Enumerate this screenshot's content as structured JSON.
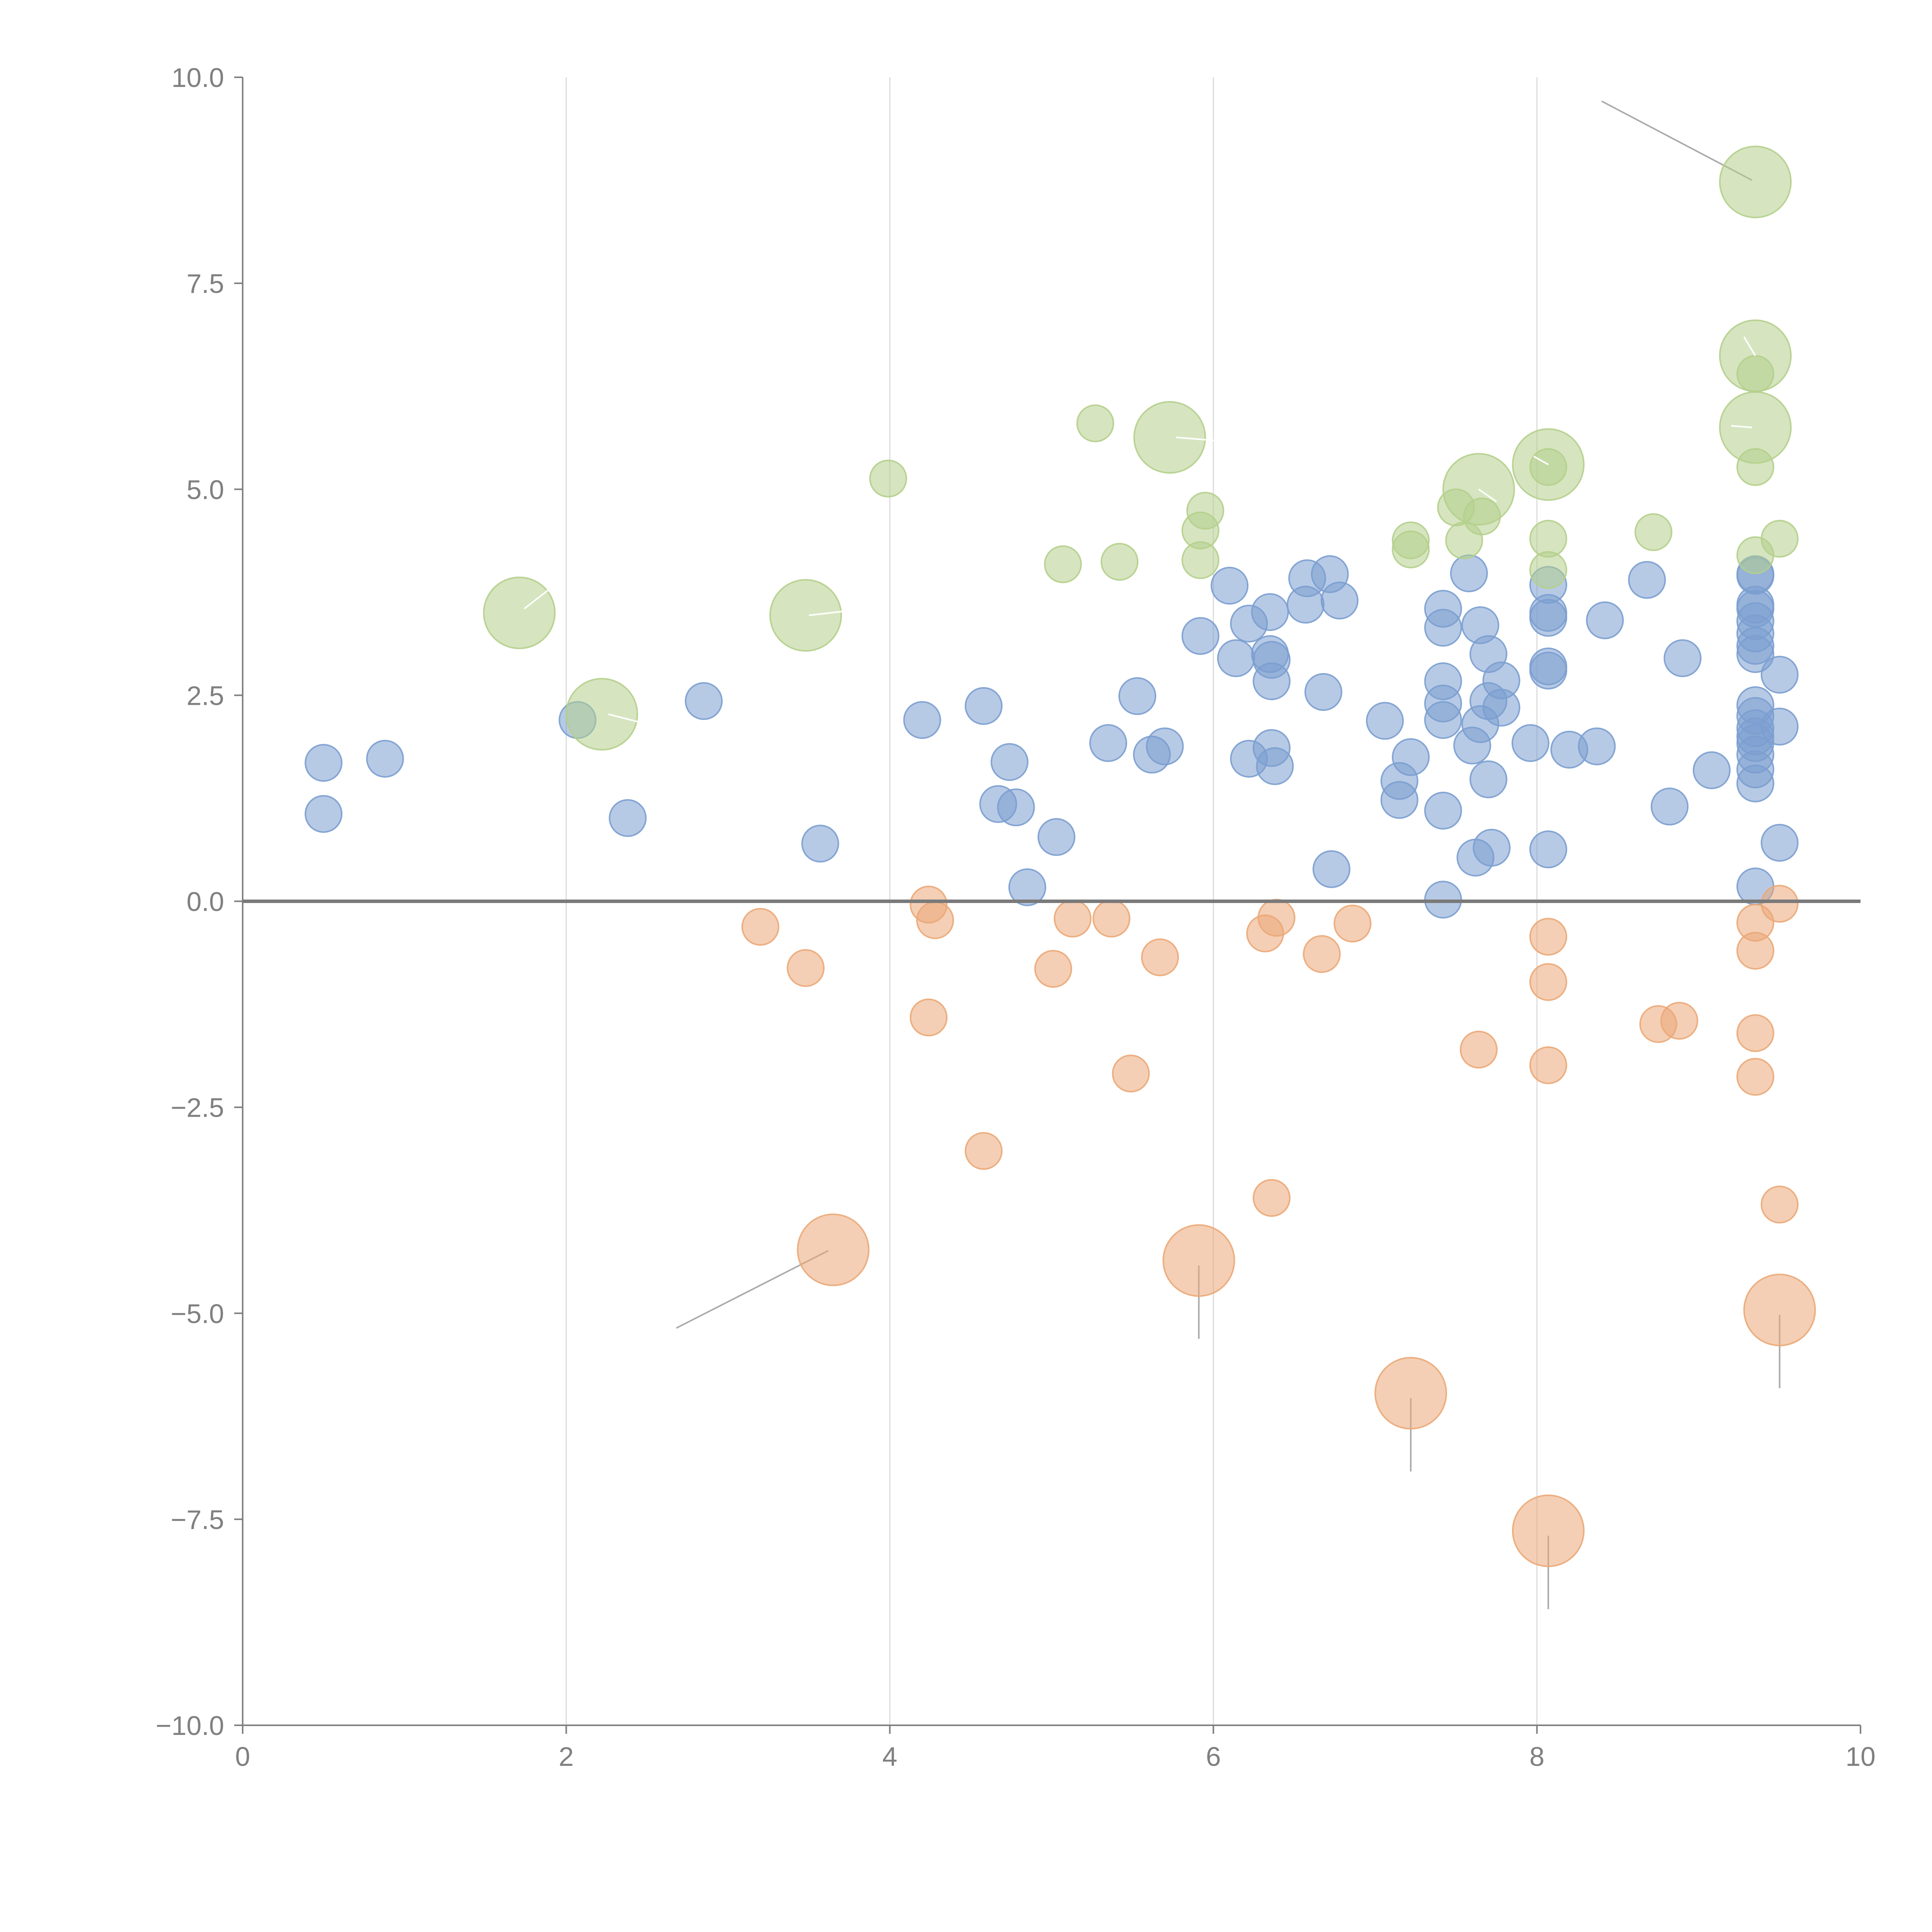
{
  "chart_data": {
    "type": "scatter",
    "subtype": "bubble",
    "title": "",
    "xlabel": "",
    "ylabel": "",
    "xlim": [
      0,
      10
    ],
    "ylim": [
      -10,
      10
    ],
    "x_ticks": [
      0,
      2,
      4,
      6,
      8,
      10
    ],
    "x_tick_labels": [
      "0",
      "2",
      "4",
      "6",
      "8",
      "10"
    ],
    "y_ticks": [
      10,
      7.5,
      5,
      2.5,
      0,
      -2.5,
      -5,
      -7.5,
      -10
    ],
    "y_tick_labels": [
      "10.0",
      "7.5",
      "5.0",
      "2.5",
      "0.0",
      "−2.5",
      "−5.0",
      "−7.5",
      "−10.0"
    ],
    "vertical_grid_at": [
      2,
      4,
      6,
      8
    ],
    "zero_line": 0,
    "series": [
      {
        "name": "blue",
        "color": "#7b9fd0",
        "points": [
          {
            "x": 0.5,
            "y": 1.68,
            "s": 1
          },
          {
            "x": 0.5,
            "y": 1.06,
            "s": 1
          },
          {
            "x": 0.88,
            "y": 1.73,
            "s": 1
          },
          {
            "x": 2.07,
            "y": 2.2,
            "s": 1
          },
          {
            "x": 2.38,
            "y": 1.01,
            "s": 1
          },
          {
            "x": 2.85,
            "y": 2.43,
            "s": 1
          },
          {
            "x": 3.57,
            "y": 0.7,
            "s": 1
          },
          {
            "x": 4.2,
            "y": 2.2,
            "s": 1
          },
          {
            "x": 4.58,
            "y": 2.37,
            "s": 1
          },
          {
            "x": 4.67,
            "y": 1.18,
            "s": 1
          },
          {
            "x": 4.74,
            "y": 1.69,
            "s": 1
          },
          {
            "x": 4.78,
            "y": 1.14,
            "s": 1
          },
          {
            "x": 4.85,
            "y": 0.17,
            "s": 1
          },
          {
            "x": 5.03,
            "y": 0.78,
            "s": 1
          },
          {
            "x": 5.35,
            "y": 1.92,
            "s": 1
          },
          {
            "x": 5.53,
            "y": 2.49,
            "s": 1
          },
          {
            "x": 5.62,
            "y": 1.78,
            "s": 1
          },
          {
            "x": 5.7,
            "y": 1.88,
            "s": 1
          },
          {
            "x": 5.92,
            "y": 3.22,
            "s": 1
          },
          {
            "x": 6.1,
            "y": 3.83,
            "s": 1
          },
          {
            "x": 6.14,
            "y": 2.95,
            "s": 1
          },
          {
            "x": 6.22,
            "y": 3.37,
            "s": 1
          },
          {
            "x": 6.22,
            "y": 1.73,
            "s": 1
          },
          {
            "x": 6.35,
            "y": 3.51,
            "s": 1
          },
          {
            "x": 6.35,
            "y": 3.0,
            "s": 1
          },
          {
            "x": 6.36,
            "y": 2.93,
            "s": 1
          },
          {
            "x": 6.36,
            "y": 2.67,
            "s": 1
          },
          {
            "x": 6.36,
            "y": 1.86,
            "s": 1
          },
          {
            "x": 6.38,
            "y": 1.64,
            "s": 1
          },
          {
            "x": 6.57,
            "y": 3.6,
            "s": 1
          },
          {
            "x": 6.58,
            "y": 3.92,
            "s": 1
          },
          {
            "x": 6.68,
            "y": 2.54,
            "s": 1
          },
          {
            "x": 6.72,
            "y": 3.97,
            "s": 1
          },
          {
            "x": 6.73,
            "y": 0.39,
            "s": 1
          },
          {
            "x": 6.78,
            "y": 3.65,
            "s": 1
          },
          {
            "x": 7.06,
            "y": 2.19,
            "s": 1
          },
          {
            "x": 7.15,
            "y": 1.46,
            "s": 1
          },
          {
            "x": 7.15,
            "y": 1.23,
            "s": 1
          },
          {
            "x": 7.22,
            "y": 1.75,
            "s": 1
          },
          {
            "x": 7.42,
            "y": 3.55,
            "s": 1
          },
          {
            "x": 7.42,
            "y": 3.32,
            "s": 1
          },
          {
            "x": 7.42,
            "y": 2.67,
            "s": 1
          },
          {
            "x": 7.42,
            "y": 2.4,
            "s": 1
          },
          {
            "x": 7.42,
            "y": 2.2,
            "s": 1
          },
          {
            "x": 7.42,
            "y": 1.1,
            "s": 1
          },
          {
            "x": 7.42,
            "y": 0.02,
            "s": 1
          },
          {
            "x": 7.58,
            "y": 3.98,
            "s": 1
          },
          {
            "x": 7.6,
            "y": 1.89,
            "s": 1
          },
          {
            "x": 7.62,
            "y": 0.53,
            "s": 1
          },
          {
            "x": 7.65,
            "y": 3.35,
            "s": 1
          },
          {
            "x": 7.65,
            "y": 2.15,
            "s": 1
          },
          {
            "x": 7.7,
            "y": 3.0,
            "s": 1
          },
          {
            "x": 7.7,
            "y": 2.43,
            "s": 1
          },
          {
            "x": 7.7,
            "y": 1.48,
            "s": 1
          },
          {
            "x": 7.72,
            "y": 0.65,
            "s": 1
          },
          {
            "x": 7.78,
            "y": 2.68,
            "s": 1
          },
          {
            "x": 7.78,
            "y": 2.35,
            "s": 1
          },
          {
            "x": 7.96,
            "y": 1.92,
            "s": 1
          },
          {
            "x": 8.07,
            "y": 3.84,
            "s": 1
          },
          {
            "x": 8.07,
            "y": 3.5,
            "s": 1
          },
          {
            "x": 8.07,
            "y": 3.44,
            "s": 1
          },
          {
            "x": 8.07,
            "y": 2.85,
            "s": 1
          },
          {
            "x": 8.07,
            "y": 2.8,
            "s": 1
          },
          {
            "x": 8.07,
            "y": 0.63,
            "s": 1
          },
          {
            "x": 8.2,
            "y": 1.84,
            "s": 1
          },
          {
            "x": 8.37,
            "y": 1.88,
            "s": 1
          },
          {
            "x": 8.42,
            "y": 3.41,
            "s": 1
          },
          {
            "x": 8.68,
            "y": 3.9,
            "s": 1
          },
          {
            "x": 8.82,
            "y": 1.15,
            "s": 1
          },
          {
            "x": 8.9,
            "y": 2.95,
            "s": 1
          },
          {
            "x": 9.08,
            "y": 1.59,
            "s": 1
          },
          {
            "x": 9.35,
            "y": 3.97,
            "s": 1
          },
          {
            "x": 9.35,
            "y": 3.95,
            "s": 1
          },
          {
            "x": 9.35,
            "y": 3.6,
            "s": 1
          },
          {
            "x": 9.35,
            "y": 3.55,
            "s": 1
          },
          {
            "x": 9.35,
            "y": 3.4,
            "s": 1
          },
          {
            "x": 9.35,
            "y": 3.25,
            "s": 1
          },
          {
            "x": 9.35,
            "y": 3.1,
            "s": 1
          },
          {
            "x": 9.35,
            "y": 3.0,
            "s": 1
          },
          {
            "x": 9.35,
            "y": 2.38,
            "s": 1
          },
          {
            "x": 9.35,
            "y": 2.25,
            "s": 1
          },
          {
            "x": 9.35,
            "y": 2.1,
            "s": 1
          },
          {
            "x": 9.35,
            "y": 2.0,
            "s": 1
          },
          {
            "x": 9.35,
            "y": 1.92,
            "s": 1
          },
          {
            "x": 9.35,
            "y": 1.78,
            "s": 1
          },
          {
            "x": 9.35,
            "y": 1.6,
            "s": 1
          },
          {
            "x": 9.35,
            "y": 1.43,
            "s": 1
          },
          {
            "x": 9.35,
            "y": 0.18,
            "s": 1
          },
          {
            "x": 9.5,
            "y": 2.75,
            "s": 1
          },
          {
            "x": 9.5,
            "y": 2.12,
            "s": 1
          },
          {
            "x": 9.5,
            "y": 0.71,
            "s": 1
          }
        ]
      },
      {
        "name": "green",
        "color": "#b5cf8c",
        "points": [
          {
            "x": 1.71,
            "y": 3.5,
            "s": 2
          },
          {
            "x": 2.22,
            "y": 2.27,
            "s": 2
          },
          {
            "x": 3.48,
            "y": 3.47,
            "s": 2
          },
          {
            "x": 3.99,
            "y": 5.13,
            "s": 1
          },
          {
            "x": 5.07,
            "y": 4.09,
            "s": 1
          },
          {
            "x": 5.27,
            "y": 5.8,
            "s": 1
          },
          {
            "x": 5.42,
            "y": 4.12,
            "s": 1
          },
          {
            "x": 5.73,
            "y": 5.63,
            "s": 2
          },
          {
            "x": 5.92,
            "y": 4.5,
            "s": 1
          },
          {
            "x": 5.92,
            "y": 4.14,
            "s": 1
          },
          {
            "x": 5.95,
            "y": 4.74,
            "s": 1
          },
          {
            "x": 7.22,
            "y": 4.38,
            "s": 1
          },
          {
            "x": 7.22,
            "y": 4.27,
            "s": 1
          },
          {
            "x": 7.5,
            "y": 4.78,
            "s": 1
          },
          {
            "x": 7.55,
            "y": 4.38,
            "s": 1
          },
          {
            "x": 7.64,
            "y": 5.0,
            "s": 2
          },
          {
            "x": 7.66,
            "y": 4.67,
            "s": 1
          },
          {
            "x": 8.07,
            "y": 5.3,
            "s": 2
          },
          {
            "x": 8.07,
            "y": 5.27,
            "s": 1
          },
          {
            "x": 8.07,
            "y": 4.4,
            "s": 1
          },
          {
            "x": 8.07,
            "y": 4.02,
            "s": 1
          },
          {
            "x": 8.72,
            "y": 4.48,
            "s": 1
          },
          {
            "x": 9.35,
            "y": 8.73,
            "s": 2
          },
          {
            "x": 9.35,
            "y": 6.62,
            "s": 2
          },
          {
            "x": 9.35,
            "y": 6.4,
            "s": 1
          },
          {
            "x": 9.35,
            "y": 5.75,
            "s": 2
          },
          {
            "x": 9.35,
            "y": 5.27,
            "s": 1
          },
          {
            "x": 9.35,
            "y": 4.2,
            "s": 1
          },
          {
            "x": 9.5,
            "y": 4.4,
            "s": 1
          }
        ]
      },
      {
        "name": "orange",
        "color": "#eba878",
        "points": [
          {
            "x": 3.2,
            "y": -0.31,
            "s": 1
          },
          {
            "x": 3.48,
            "y": -0.81,
            "s": 1
          },
          {
            "x": 3.65,
            "y": -4.23,
            "s": 2
          },
          {
            "x": 4.24,
            "y": -0.04,
            "s": 1
          },
          {
            "x": 4.24,
            "y": -1.41,
            "s": 1
          },
          {
            "x": 4.28,
            "y": -0.23,
            "s": 1
          },
          {
            "x": 4.58,
            "y": -3.03,
            "s": 1
          },
          {
            "x": 5.01,
            "y": -0.82,
            "s": 1
          },
          {
            "x": 5.13,
            "y": -0.21,
            "s": 1
          },
          {
            "x": 5.37,
            "y": -0.21,
            "s": 1
          },
          {
            "x": 5.49,
            "y": -2.09,
            "s": 1
          },
          {
            "x": 5.67,
            "y": -0.68,
            "s": 1
          },
          {
            "x": 5.91,
            "y": -4.36,
            "s": 2
          },
          {
            "x": 6.32,
            "y": -0.39,
            "s": 1
          },
          {
            "x": 6.36,
            "y": -3.6,
            "s": 1
          },
          {
            "x": 6.39,
            "y": -0.2,
            "s": 1
          },
          {
            "x": 6.67,
            "y": -0.64,
            "s": 1
          },
          {
            "x": 6.86,
            "y": -0.27,
            "s": 1
          },
          {
            "x": 7.22,
            "y": -5.97,
            "s": 2
          },
          {
            "x": 7.64,
            "y": -1.8,
            "s": 1
          },
          {
            "x": 8.07,
            "y": -0.43,
            "s": 1
          },
          {
            "x": 8.07,
            "y": -0.98,
            "s": 1
          },
          {
            "x": 8.07,
            "y": -1.99,
            "s": 1
          },
          {
            "x": 8.07,
            "y": -7.64,
            "s": 2
          },
          {
            "x": 8.75,
            "y": -1.49,
            "s": 1
          },
          {
            "x": 8.88,
            "y": -1.45,
            "s": 1
          },
          {
            "x": 9.35,
            "y": -0.26,
            "s": 1
          },
          {
            "x": 9.35,
            "y": -0.6,
            "s": 1
          },
          {
            "x": 9.35,
            "y": -1.6,
            "s": 1
          },
          {
            "x": 9.35,
            "y": -2.13,
            "s": 1
          },
          {
            "x": 9.5,
            "y": -0.03,
            "s": 1
          },
          {
            "x": 9.5,
            "y": -3.68,
            "s": 1
          },
          {
            "x": 9.5,
            "y": -4.96,
            "s": 2
          }
        ]
      }
    ],
    "annotation_leaders": [
      {
        "from": [
          3.62,
          -4.24
        ],
        "to": [
          2.68,
          -5.18
        ],
        "color": "gray"
      },
      {
        "from": [
          5.91,
          -4.42
        ],
        "to": [
          5.91,
          -5.31
        ],
        "color": "gray"
      },
      {
        "from": [
          7.22,
          -6.03
        ],
        "to": [
          7.22,
          -6.92
        ],
        "color": "gray"
      },
      {
        "from": [
          8.07,
          -7.7
        ],
        "to": [
          8.07,
          -8.59
        ],
        "color": "gray"
      },
      {
        "from": [
          9.5,
          -5.02
        ],
        "to": [
          9.5,
          -5.91
        ],
        "color": "gray"
      },
      {
        "from": [
          9.33,
          8.75
        ],
        "to": [
          8.4,
          9.71
        ],
        "color": "gray"
      },
      {
        "from": [
          1.74,
          3.55
        ],
        "to": [
          1.97,
          3.9
        ],
        "color": "white"
      },
      {
        "from": [
          2.26,
          2.27
        ],
        "to": [
          2.44,
          2.18
        ],
        "color": "white"
      },
      {
        "from": [
          3.5,
          3.47
        ],
        "to": [
          3.85,
          3.55
        ],
        "color": "white"
      },
      {
        "from": [
          5.77,
          5.63
        ],
        "to": [
          6.02,
          5.59
        ],
        "color": "white"
      },
      {
        "from": [
          7.64,
          5.0
        ],
        "to": [
          7.75,
          4.85
        ],
        "color": "white"
      },
      {
        "from": [
          8.07,
          5.3
        ],
        "to": [
          7.98,
          5.4
        ],
        "color": "white"
      },
      {
        "from": [
          9.35,
          6.62
        ],
        "to": [
          9.28,
          6.85
        ],
        "color": "white"
      },
      {
        "from": [
          9.33,
          5.75
        ],
        "to": [
          9.2,
          5.77
        ],
        "color": "white"
      }
    ]
  }
}
